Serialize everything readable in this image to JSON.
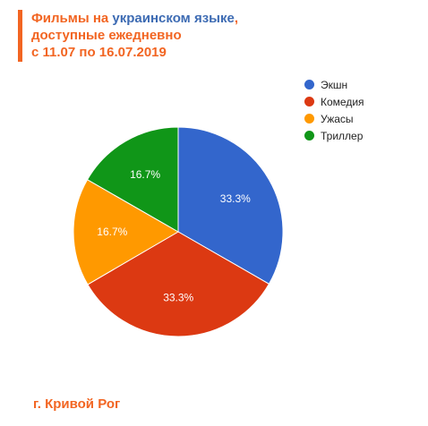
{
  "header": {
    "title_part1": "Фильмы на ",
    "title_highlight": "украинском языке",
    "title_part2": ",",
    "title_line2": "доступные ежедневно",
    "title_line3": "с 11.07 по 16.07.2019"
  },
  "chart_data": {
    "type": "pie",
    "categories": [
      "Экшн",
      "Комедия",
      "Ужасы",
      "Триллер"
    ],
    "values": [
      33.3,
      33.3,
      16.7,
      16.7
    ],
    "labels": [
      "33.3%",
      "33.3%",
      "16.7%",
      "16.7%"
    ],
    "colors": [
      "#3366cc",
      "#dc3912",
      "#ff9900",
      "#109618"
    ],
    "legend_position": "right-top"
  },
  "footer": {
    "city": "г. Кривой Рог"
  },
  "colors": {
    "accent": "#f26522",
    "highlight": "#3d6bb3"
  }
}
